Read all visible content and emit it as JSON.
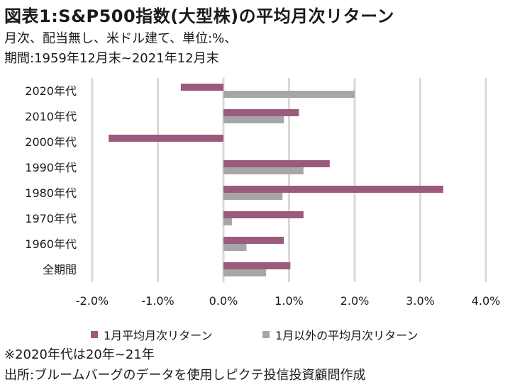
{
  "title": "図表1:S&P500指数(大型株)の平均月次リターン",
  "subtitle_lines": [
    "月次、配当無し、米ドル建て、単位:%、",
    "期間:1959年12月末~2021年12月末"
  ],
  "notes": [
    "※2020年代は20年~21年",
    "出所:ブルームバーグのデータを使用しピクテ投信投資顧問作成"
  ],
  "colors": {
    "series_1": "#9b5b7c",
    "series_2": "#a6a6a6",
    "grid": "#d9d9d9",
    "text": "#1a1a1a"
  },
  "chart_data": {
    "type": "bar",
    "orientation": "horizontal",
    "categories": [
      "2020年代",
      "2010年代",
      "2000年代",
      "1990年代",
      "1980年代",
      "1970年代",
      "1960年代",
      "全期間"
    ],
    "series": [
      {
        "name": "1月平均月次リターン",
        "values": [
          -0.65,
          1.15,
          -1.75,
          1.62,
          3.35,
          1.22,
          0.92,
          1.02
        ]
      },
      {
        "name": "1月以外の平均月次リターン",
        "values": [
          2.0,
          0.92,
          0.0,
          1.22,
          0.9,
          0.13,
          0.35,
          0.65
        ]
      }
    ],
    "xlim": [
      -2.0,
      4.0
    ],
    "xticks": [
      -2.0,
      -1.0,
      0.0,
      1.0,
      2.0,
      3.0,
      4.0
    ],
    "xtick_labels": [
      "-2.0%",
      "-1.0%",
      "0.0%",
      "1.0%",
      "2.0%",
      "3.0%",
      "4.0%"
    ],
    "grid": "vertical",
    "legend_position": "bottom"
  }
}
